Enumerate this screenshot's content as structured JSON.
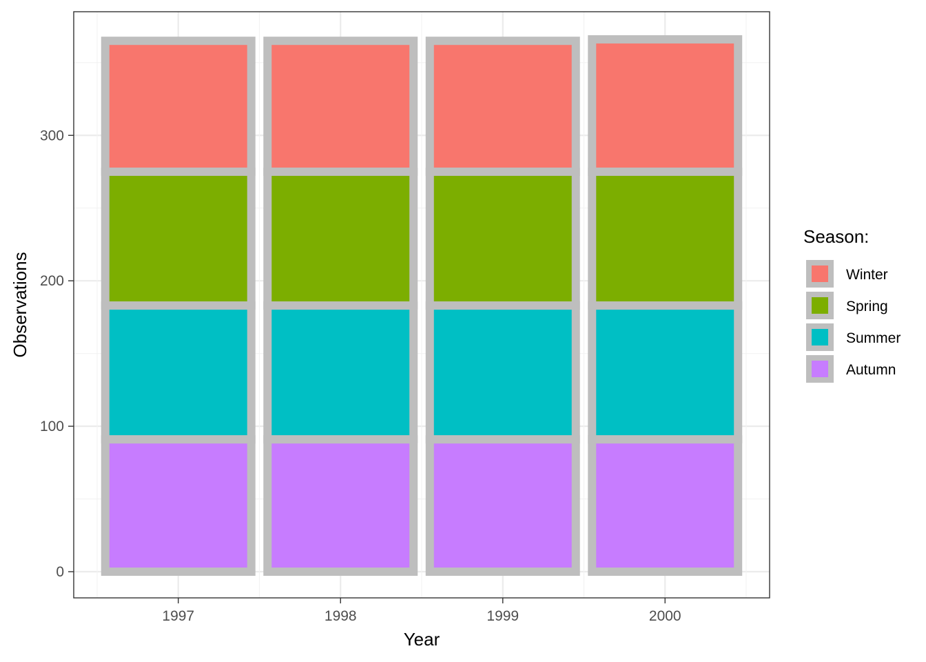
{
  "chart_data": {
    "type": "bar",
    "stacked": true,
    "title": "",
    "xlabel": "Year",
    "ylabel": "Observations",
    "categories": [
      "1997",
      "1998",
      "1999",
      "2000"
    ],
    "series": [
      {
        "name": "Autumn",
        "color": "#C77CFF",
        "values": [
          91,
          91,
          91,
          91
        ]
      },
      {
        "name": "Summer",
        "color": "#00BFC4",
        "values": [
          92,
          92,
          92,
          92
        ]
      },
      {
        "name": "Spring",
        "color": "#7CAE00",
        "values": [
          92,
          92,
          92,
          92
        ]
      },
      {
        "name": "Winter",
        "color": "#F8766D",
        "values": [
          90,
          90,
          90,
          91
        ]
      }
    ],
    "ylim": [
      -18,
      385
    ],
    "yticks": [
      0,
      100,
      200,
      300
    ],
    "grid": true,
    "bar_outline_color": "#BEBEBE",
    "legend": {
      "title": "Season:",
      "position": "right",
      "order": [
        "Winter",
        "Spring",
        "Summer",
        "Autumn"
      ]
    }
  }
}
